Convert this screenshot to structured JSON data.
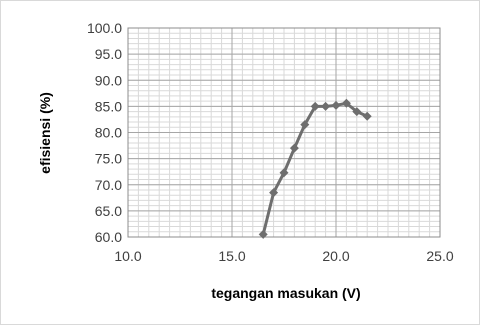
{
  "chart_data": {
    "type": "line",
    "title": "",
    "xlabel": "tegangan masukan (V)",
    "ylabel": "efisiensi (%)",
    "xlim": [
      10.0,
      25.0
    ],
    "ylim": [
      60.0,
      100.0
    ],
    "x_ticks": [
      10.0,
      15.0,
      20.0,
      25.0
    ],
    "y_ticks": [
      60.0,
      65.0,
      70.0,
      75.0,
      80.0,
      85.0,
      90.0,
      95.0,
      100.0
    ],
    "x_minor_step": 0.5,
    "y_minor_step": 1.0,
    "tick_format_decimals": 1,
    "grid": true,
    "legend": "none",
    "marker": "diamond",
    "series": [
      {
        "color": "#6e6e6e",
        "x": [
          16.5,
          17.0,
          17.5,
          18.0,
          18.5,
          19.0,
          19.5,
          20.0,
          20.5,
          21.0,
          21.5
        ],
        "y": [
          60.5,
          68.5,
          72.3,
          77.0,
          81.5,
          85.0,
          85.0,
          85.2,
          85.6,
          84.0,
          83.1
        ]
      }
    ]
  }
}
